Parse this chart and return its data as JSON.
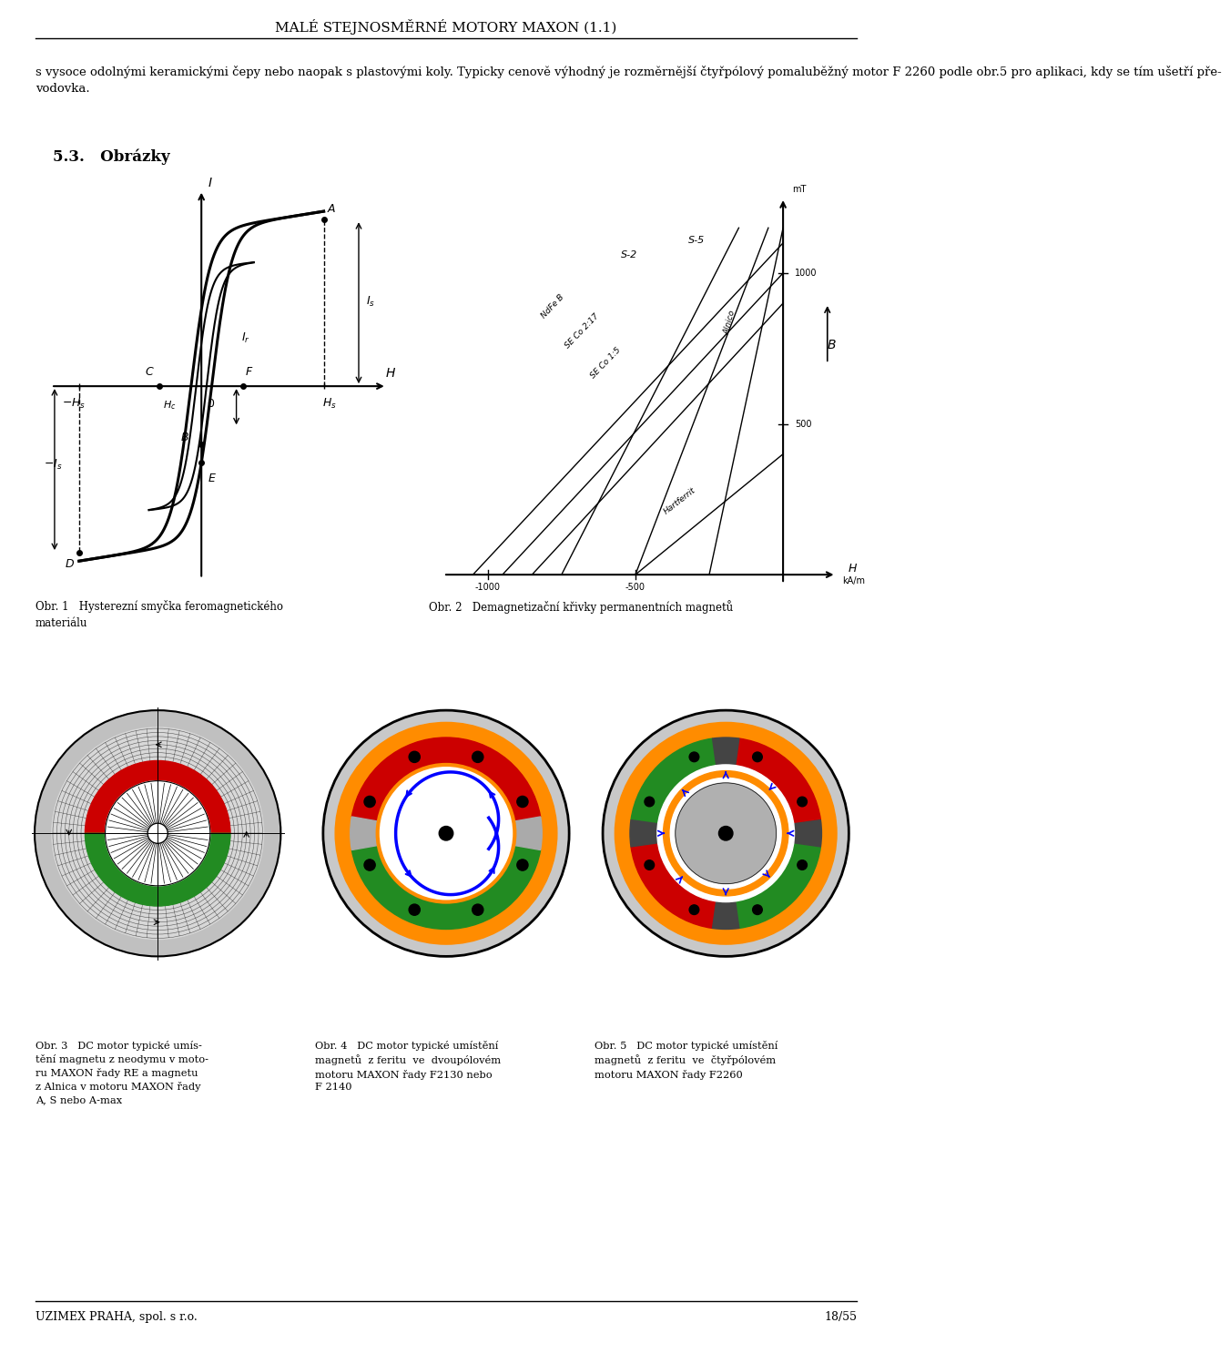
{
  "page_title": "MALÉ STEJNOSMĚRNÉ MOTORY MAXON (1.1)",
  "footer_left": "UZIMEX PRAHA, spol. s r.o.",
  "footer_right": "18/55",
  "body_text_1": "s vysoce odolnými keramickými čepy nebo naopak s plastovými koly. Typicky cenově výhodný je rozměrnější čtyřpólový pomaluběžný motor F 2260 podle obr.5 pro aplikaci, kdy se tím ušetří pře-\nvodovka.",
  "section_title": "5.3.   Obrázky",
  "caption1": "Obr. 1   Hysterezní smyčka feromagnetického\nmateriálu",
  "caption2": "Obr. 2   Demagnetizační křivky permanentních magnetů",
  "caption3": "Obr. 3   DC motor typické umís-\ntění magnetu z neodymu v moto-\nru MAXON řady RE a magnetu\nz Alnica v motoru MAXON řady\nA, S nebo A-max",
  "caption4": "Obr. 4   DC motor typické umístění\nmagnetů  z feritu  ve  dvoupólovém\nmotoru MAXON řady F2130 nebo\nF 2140",
  "caption5": "Obr. 5   DC motor typické umístění\nmagnetů  z feritu  ve  čtyřpólovém\nmotoru MAXON řady F2260",
  "bg_color": "#ffffff",
  "text_color": "#000000"
}
